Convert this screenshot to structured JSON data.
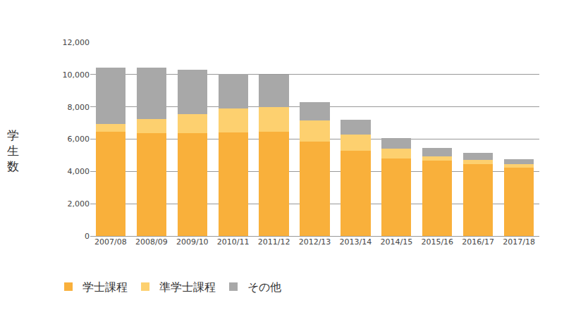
{
  "chart_data": {
    "type": "bar",
    "stacked": true,
    "grid": true,
    "legend": "bottom",
    "y_label": "学生数",
    "categories": [
      "2007/08",
      "2008/09",
      "2009/10",
      "2010/11",
      "2011/12",
      "2012/13",
      "2013/14",
      "2014/15",
      "2015/16",
      "2016/17",
      "2017/18"
    ],
    "series": [
      {
        "name": "学士課程",
        "color": "#f9b03b",
        "values": [
          6450,
          6350,
          6350,
          6400,
          6450,
          5850,
          5300,
          4800,
          4650,
          4450,
          4250
        ]
      },
      {
        "name": "準学士課程",
        "color": "#fdd06f",
        "values": [
          500,
          900,
          1200,
          1500,
          1550,
          1300,
          1000,
          600,
          300,
          250,
          200
        ]
      },
      {
        "name": "その他",
        "color": "#a8a8a8",
        "values": [
          3500,
          3200,
          2750,
          2150,
          2000,
          1150,
          900,
          650,
          500,
          450,
          300
        ]
      }
    ],
    "ylim": [
      0,
      12000
    ],
    "yticks": [
      0,
      {
        "value": 2000,
        "label": "2,000"
      },
      {
        "value": 4000,
        "label": "4,000"
      },
      {
        "value": 6000,
        "label": "6,000"
      },
      {
        "value": 8000,
        "label": "8,000"
      },
      {
        "value": 10000,
        "label": "10,000"
      },
      {
        "value": 12000,
        "label": "12,000"
      }
    ]
  }
}
